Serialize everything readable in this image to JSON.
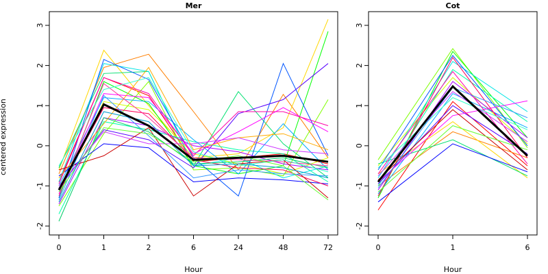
{
  "figure": {
    "ylabel": "centered expression",
    "xlabel": "Hour"
  },
  "chart_data": [
    {
      "type": "line",
      "title": "Mer",
      "xlabel": "Hour",
      "ylabel": "centered expression",
      "x": [
        "0",
        "1",
        "2",
        "6",
        "24",
        "48",
        "72"
      ],
      "ylim": [
        -2,
        3
      ],
      "yticks": [
        -2,
        -1,
        0,
        1,
        2,
        3
      ],
      "grid": false,
      "mean_series": {
        "color": "#000000",
        "values": [
          -1.1,
          1.03,
          0.5,
          -0.35,
          -0.3,
          -0.25,
          -0.4
        ]
      },
      "series": [
        {
          "color": "#ff0000",
          "values": [
            -0.9,
            1.7,
            1.25,
            -0.4,
            -0.3,
            -0.2,
            -0.45
          ]
        },
        {
          "color": "#ff7f00",
          "values": [
            -0.7,
            1.95,
            2.28,
            0.85,
            -0.6,
            1.28,
            -0.3
          ]
        },
        {
          "color": "#ffd700",
          "values": [
            -0.6,
            2.38,
            1.0,
            -0.3,
            -0.2,
            0.45,
            3.15
          ]
        },
        {
          "color": "#d4ff00",
          "values": [
            -1.2,
            1.1,
            0.9,
            -0.2,
            -0.45,
            -0.7,
            -0.3
          ]
        },
        {
          "color": "#7fff00",
          "values": [
            -1.5,
            0.3,
            1.6,
            -0.6,
            -0.55,
            -0.75,
            1.15
          ]
        },
        {
          "color": "#00ff00",
          "values": [
            -1.3,
            1.6,
            1.05,
            -0.5,
            -0.7,
            -0.5,
            2.85
          ]
        },
        {
          "color": "#00e070",
          "values": [
            -0.55,
            1.8,
            1.85,
            -0.5,
            1.35,
            0.05,
            -0.8
          ]
        },
        {
          "color": "#00ffaa",
          "values": [
            -1.7,
            0.6,
            0.4,
            0.1,
            -0.1,
            -0.2,
            -0.9
          ]
        },
        {
          "color": "#00e5e5",
          "values": [
            -0.9,
            2.05,
            1.85,
            -0.5,
            -0.3,
            -0.8,
            -0.5
          ]
        },
        {
          "color": "#00aaff",
          "values": [
            -1.0,
            1.2,
            1.1,
            0.15,
            -0.7,
            0.55,
            -0.6
          ]
        },
        {
          "color": "#0055ff",
          "values": [
            -1.3,
            2.15,
            1.65,
            -0.3,
            -1.25,
            2.05,
            -0.25
          ]
        },
        {
          "color": "#0000ff",
          "values": [
            -0.75,
            0.05,
            -0.05,
            -0.9,
            -0.8,
            -0.85,
            -0.95
          ]
        },
        {
          "color": "#5500ff",
          "values": [
            -1.05,
            0.4,
            0.15,
            -0.55,
            0.8,
            1.15,
            2.05
          ]
        },
        {
          "color": "#aa00ff",
          "values": [
            -1.45,
            0.7,
            0.5,
            0.0,
            -0.15,
            -0.45,
            -0.6
          ]
        },
        {
          "color": "#ff00ff",
          "values": [
            -1.2,
            1.3,
            1.2,
            -0.2,
            0.35,
            0.95,
            0.35
          ]
        },
        {
          "color": "#ff00aa",
          "values": [
            -0.95,
            1.7,
            1.3,
            -0.25,
            0.85,
            0.85,
            0.5
          ]
        },
        {
          "color": "#ff0055",
          "values": [
            -1.1,
            0.95,
            0.8,
            -0.35,
            -0.55,
            -0.6,
            -1.0
          ]
        },
        {
          "color": "#cc0000",
          "values": [
            -0.6,
            -0.25,
            0.45,
            -1.25,
            -0.45,
            -0.35,
            -1.3
          ]
        },
        {
          "color": "#00cc66",
          "values": [
            -1.88,
            0.7,
            0.35,
            -0.45,
            -0.4,
            -0.3,
            -0.55
          ]
        },
        {
          "color": "#3399ff",
          "values": [
            -1.35,
            1.25,
            0.25,
            -0.8,
            -0.6,
            -0.7,
            -0.75
          ]
        },
        {
          "color": "#ffaa00",
          "values": [
            -0.8,
            0.55,
            1.95,
            -0.1,
            0.2,
            0.3,
            -0.1
          ]
        },
        {
          "color": "#cc33ff",
          "values": [
            -1.0,
            0.35,
            0.05,
            0.05,
            0.2,
            -0.1,
            -0.2
          ]
        },
        {
          "color": "#ff3399",
          "values": [
            -1.25,
            1.55,
            0.7,
            -0.3,
            -0.35,
            -0.4,
            -0.5
          ]
        },
        {
          "color": "#33ffcc",
          "values": [
            -0.5,
            1.4,
            1.7,
            -0.15,
            -0.5,
            -0.35,
            -0.65
          ]
        },
        {
          "color": "#66ff33",
          "values": [
            -1.15,
            0.45,
            0.3,
            -0.4,
            -0.25,
            -0.5,
            -1.35
          ]
        },
        {
          "color": "#0099cc",
          "values": [
            -1.4,
            0.85,
            0.6,
            -0.5,
            -0.45,
            -0.55,
            -0.8
          ]
        }
      ]
    },
    {
      "type": "line",
      "title": "Cot",
      "xlabel": "Hour",
      "ylabel": "",
      "x": [
        "0",
        "1",
        "6"
      ],
      "ylim": [
        -2,
        3
      ],
      "yticks": [
        -2,
        -1,
        0,
        1,
        2,
        3
      ],
      "grid": false,
      "mean_series": {
        "color": "#000000",
        "values": [
          -0.9,
          1.48,
          -0.25
        ]
      },
      "series": [
        {
          "color": "#ff0000",
          "values": [
            -1.6,
            1.1,
            -0.5
          ]
        },
        {
          "color": "#ff7f00",
          "values": [
            -1.0,
            0.35,
            -0.3
          ]
        },
        {
          "color": "#ffd700",
          "values": [
            -0.7,
            0.6,
            -0.8
          ]
        },
        {
          "color": "#d4ff00",
          "values": [
            -0.5,
            1.7,
            0.05
          ]
        },
        {
          "color": "#7fff00",
          "values": [
            -0.35,
            2.42,
            -0.05
          ]
        },
        {
          "color": "#00ff00",
          "values": [
            -1.3,
            2.35,
            0.2
          ]
        },
        {
          "color": "#00e070",
          "values": [
            -0.45,
            0.15,
            -0.75
          ]
        },
        {
          "color": "#00ffaa",
          "values": [
            -1.0,
            1.9,
            0.6
          ]
        },
        {
          "color": "#00e5e5",
          "values": [
            -0.8,
            2.1,
            0.85
          ]
        },
        {
          "color": "#00aaff",
          "values": [
            -1.2,
            1.3,
            0.45
          ]
        },
        {
          "color": "#0055ff",
          "values": [
            -0.6,
            2.25,
            0.0
          ]
        },
        {
          "color": "#0000ff",
          "values": [
            -1.4,
            0.05,
            -0.65
          ]
        },
        {
          "color": "#5500ff",
          "values": [
            -0.95,
            1.0,
            -0.2
          ]
        },
        {
          "color": "#aa00ff",
          "values": [
            -1.1,
            1.6,
            0.2
          ]
        },
        {
          "color": "#ff00ff",
          "values": [
            -0.9,
            0.75,
            1.12
          ]
        },
        {
          "color": "#ff00aa",
          "values": [
            -0.7,
            1.85,
            -0.45
          ]
        },
        {
          "color": "#ff0055",
          "values": [
            -1.25,
            2.2,
            -0.3
          ]
        },
        {
          "color": "#cc0000",
          "values": [
            -0.85,
            0.9,
            -0.6
          ]
        },
        {
          "color": "#33ffcc",
          "values": [
            -0.55,
            1.2,
            0.4
          ]
        },
        {
          "color": "#3399ff",
          "values": [
            -1.05,
            1.45,
            0.7
          ]
        },
        {
          "color": "#cc33ff",
          "values": [
            -0.75,
            1.35,
            0.1
          ]
        },
        {
          "color": "#66ff33",
          "values": [
            -1.15,
            0.5,
            -0.1
          ]
        }
      ]
    }
  ]
}
